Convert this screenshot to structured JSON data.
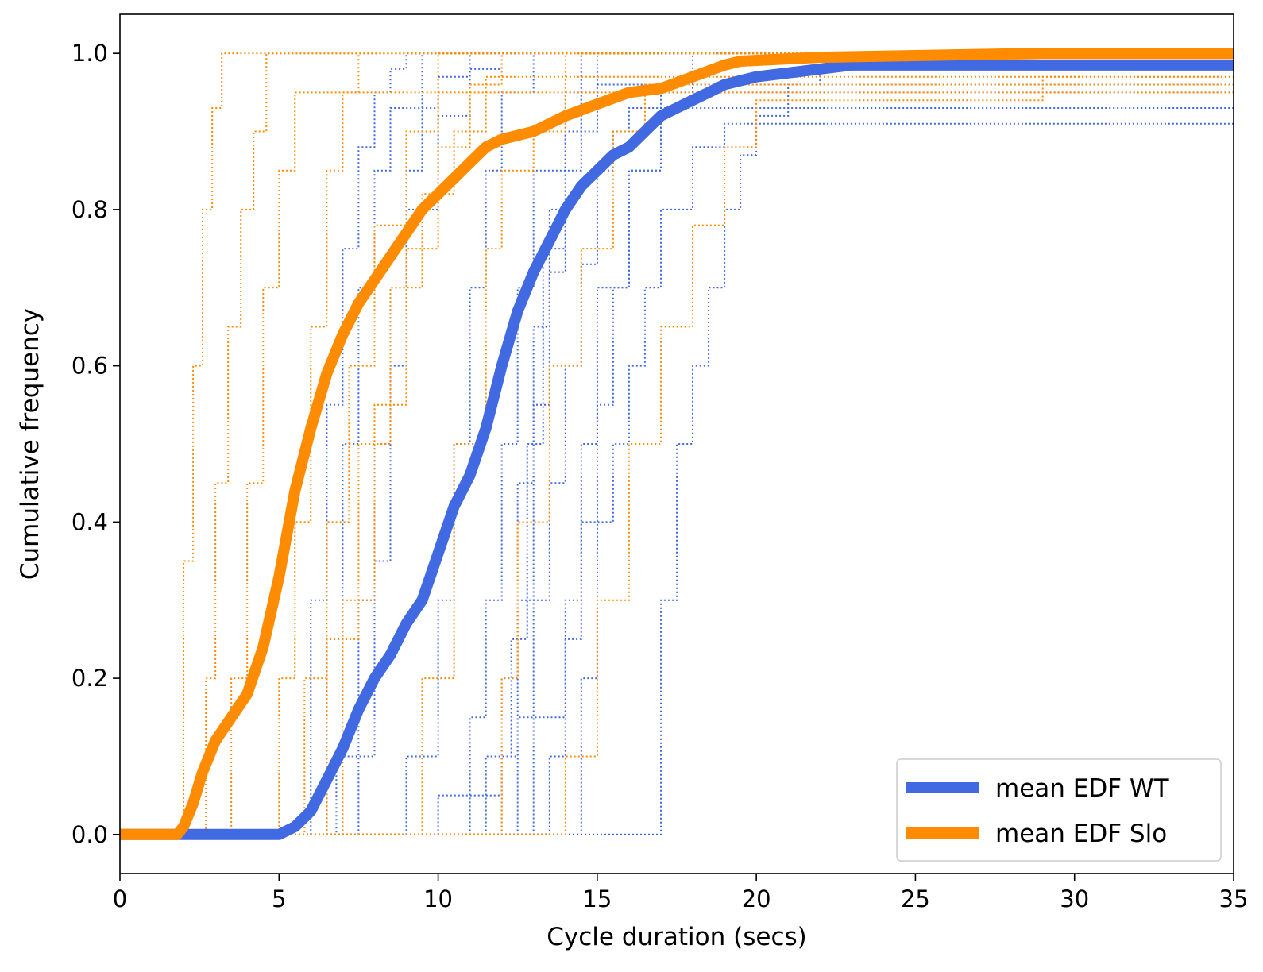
{
  "chart_data": {
    "type": "line",
    "title": "",
    "xlabel": "Cycle duration (secs)",
    "ylabel": "Cumulative frequency",
    "xlim": [
      0,
      35
    ],
    "ylim": [
      -0.05,
      1.05
    ],
    "xticks": [
      0,
      5,
      10,
      15,
      20,
      25,
      30,
      35
    ],
    "xtick_labels": [
      "0",
      "5",
      "10",
      "15",
      "20",
      "25",
      "30",
      "35"
    ],
    "yticks": [
      0.0,
      0.2,
      0.4,
      0.6,
      0.8,
      1.0
    ],
    "ytick_labels": [
      "0.0",
      "0.2",
      "0.4",
      "0.6",
      "0.8",
      "1.0"
    ],
    "grid": false,
    "legend_position": "bottom-right",
    "colors": {
      "wt": "#4169e1",
      "slo": "#ff8c00",
      "axis": "#000000"
    },
    "series": [
      {
        "name": "mean EDF WT",
        "color": "#4169e1",
        "style": "solid-thick",
        "x": [
          0,
          5.0,
          5.5,
          6.0,
          6.5,
          7.0,
          7.5,
          8.0,
          8.5,
          9.0,
          9.5,
          10.0,
          10.5,
          11.0,
          11.5,
          12.0,
          12.5,
          13.0,
          13.5,
          14.0,
          14.5,
          15.0,
          15.5,
          16.0,
          16.5,
          17.0,
          17.5,
          18.0,
          18.5,
          19.0,
          19.5,
          20.0,
          21.0,
          22.0,
          23.0,
          29.0,
          35.0
        ],
        "y": [
          0.0,
          0.0,
          0.01,
          0.03,
          0.07,
          0.11,
          0.16,
          0.2,
          0.23,
          0.27,
          0.3,
          0.36,
          0.42,
          0.46,
          0.52,
          0.6,
          0.67,
          0.72,
          0.76,
          0.8,
          0.83,
          0.85,
          0.87,
          0.88,
          0.9,
          0.92,
          0.93,
          0.94,
          0.95,
          0.96,
          0.965,
          0.97,
          0.975,
          0.98,
          0.985,
          0.985,
          0.985
        ]
      },
      {
        "name": "mean EDF Slo",
        "color": "#ff8c00",
        "style": "solid-thick",
        "x": [
          0,
          1.8,
          2.0,
          2.3,
          2.6,
          3.0,
          3.5,
          4.0,
          4.5,
          5.0,
          5.5,
          6.0,
          6.5,
          7.0,
          7.5,
          8.0,
          8.5,
          9.0,
          9.5,
          10.0,
          10.5,
          11.0,
          11.5,
          12.0,
          13.0,
          14.0,
          15.0,
          16.0,
          17.0,
          18.0,
          19.0,
          19.5,
          22.0,
          29.0,
          35.0
        ],
        "y": [
          0.0,
          0.0,
          0.01,
          0.04,
          0.08,
          0.12,
          0.15,
          0.18,
          0.24,
          0.33,
          0.44,
          0.52,
          0.59,
          0.64,
          0.68,
          0.71,
          0.74,
          0.77,
          0.8,
          0.82,
          0.84,
          0.86,
          0.88,
          0.89,
          0.9,
          0.92,
          0.935,
          0.95,
          0.955,
          0.97,
          0.985,
          0.99,
          0.995,
          1.0,
          1.0
        ]
      }
    ],
    "individual_edfs_wt_shown_unlabeled": [
      {
        "x": [
          0,
          5.3,
          6.0,
          6.5,
          7.0,
          7.5,
          8.0,
          8.5,
          9.0,
          10.0,
          11.0,
          35
        ],
        "y": [
          0,
          0,
          0.3,
          0.55,
          0.75,
          0.88,
          0.95,
          0.98,
          1.0,
          1.0,
          1.0,
          1.0
        ]
      },
      {
        "x": [
          0,
          6.0,
          6.8,
          7.5,
          8.0,
          8.5,
          9.0,
          9.5,
          10.0,
          11.0,
          35
        ],
        "y": [
          0,
          0,
          0.1,
          0.3,
          0.5,
          0.7,
          0.85,
          0.93,
          0.97,
          1.0,
          1.0
        ]
      },
      {
        "x": [
          0,
          7.0,
          7.5,
          8.0,
          8.5,
          9.0,
          10.0,
          11.0,
          12.0,
          35
        ],
        "y": [
          0,
          0,
          0.1,
          0.35,
          0.6,
          0.8,
          0.92,
          0.98,
          1.0,
          1.0
        ]
      },
      {
        "x": [
          0,
          8.0,
          9.0,
          10.0,
          10.5,
          11.0,
          11.5,
          12.0,
          13.0,
          35
        ],
        "y": [
          0,
          0,
          0.1,
          0.3,
          0.5,
          0.7,
          0.85,
          0.95,
          1.0,
          1.0
        ]
      },
      {
        "x": [
          0,
          9.0,
          10.0,
          11.0,
          11.5,
          12.0,
          12.5,
          13.0,
          14.0,
          14.5,
          35
        ],
        "y": [
          0,
          0,
          0.05,
          0.15,
          0.3,
          0.5,
          0.7,
          0.85,
          0.95,
          1.0,
          1.0
        ]
      },
      {
        "x": [
          0,
          10.0,
          11.0,
          12.0,
          12.5,
          13.0,
          13.5,
          14.0,
          15.0,
          35
        ],
        "y": [
          0,
          0,
          0.05,
          0.2,
          0.45,
          0.65,
          0.8,
          0.9,
          0.96,
          0.96
        ]
      },
      {
        "x": [
          0,
          10.5,
          11.5,
          12.3,
          12.8,
          13.3,
          14.0,
          14.5,
          35
        ],
        "y": [
          0,
          0,
          0.1,
          0.25,
          0.5,
          0.75,
          0.9,
          1.0,
          1.0
        ]
      },
      {
        "x": [
          0,
          11.0,
          12.0,
          12.5,
          13.0,
          13.5,
          14.0,
          14.5,
          15.0,
          35
        ],
        "y": [
          0,
          0,
          0.1,
          0.3,
          0.55,
          0.72,
          0.85,
          0.95,
          1.0,
          1.0
        ]
      },
      {
        "x": [
          0,
          12.0,
          12.5,
          13.0,
          13.5,
          14.0,
          14.5,
          15.0,
          15.5,
          16.0,
          35
        ],
        "y": [
          0,
          0,
          0.15,
          0.3,
          0.45,
          0.6,
          0.73,
          0.85,
          0.9,
          0.93,
          0.93
        ]
      },
      {
        "x": [
          0,
          12.5,
          13.0,
          14.0,
          14.5,
          15.0,
          15.5,
          16.0,
          17.0,
          18.0,
          35
        ],
        "y": [
          0,
          0,
          0.15,
          0.25,
          0.4,
          0.55,
          0.7,
          0.85,
          0.93,
          0.95,
          0.95
        ]
      },
      {
        "x": [
          0,
          13.0,
          13.5,
          14.0,
          14.5,
          15.0,
          16.0,
          17.0,
          18.0,
          35
        ],
        "y": [
          0,
          0,
          0.1,
          0.3,
          0.5,
          0.7,
          0.85,
          0.95,
          1.0,
          1.0
        ]
      },
      {
        "x": [
          0,
          14.0,
          14.5,
          15.0,
          15.5,
          16.0,
          16.5,
          17.0,
          18.0,
          19.0,
          35
        ],
        "y": [
          0,
          0,
          0.2,
          0.4,
          0.5,
          0.6,
          0.7,
          0.8,
          0.88,
          0.91,
          0.91
        ]
      },
      {
        "x": [
          0,
          16.3,
          17.0,
          17.5,
          18.0,
          18.5,
          19.0,
          19.5,
          20.0,
          21.0,
          22.0,
          35
        ],
        "y": [
          0,
          0,
          0.3,
          0.5,
          0.6,
          0.7,
          0.8,
          0.87,
          0.92,
          0.96,
          0.98,
          0.98
        ]
      },
      {
        "x": [
          0,
          5.8,
          6.5,
          7.0,
          7.5,
          8.0,
          8.5,
          9.5,
          35
        ],
        "y": [
          0,
          0,
          0.25,
          0.5,
          0.7,
          0.85,
          0.93,
          1.0,
          1.0
        ]
      }
    ],
    "individual_edfs_slo_shown_unlabeled": [
      {
        "x": [
          0,
          1.8,
          2.0,
          2.3,
          2.6,
          2.9,
          3.2,
          35
        ],
        "y": [
          0,
          0,
          0.35,
          0.6,
          0.8,
          0.93,
          1.0,
          1.0
        ]
      },
      {
        "x": [
          0,
          2.3,
          2.7,
          3.0,
          3.4,
          3.8,
          4.2,
          4.6,
          35
        ],
        "y": [
          0,
          0,
          0.2,
          0.45,
          0.65,
          0.8,
          0.9,
          1.0,
          1.0
        ]
      },
      {
        "x": [
          0,
          3.0,
          3.5,
          4.0,
          4.5,
          5.0,
          5.5,
          35
        ],
        "y": [
          0,
          0,
          0.2,
          0.45,
          0.7,
          0.85,
          0.95,
          0.95
        ]
      },
      {
        "x": [
          0,
          4.5,
          5.0,
          5.5,
          6.0,
          6.5,
          7.0,
          7.5,
          35
        ],
        "y": [
          0,
          0,
          0.2,
          0.4,
          0.65,
          0.85,
          0.95,
          1.0,
          1.0
        ]
      },
      {
        "x": [
          0,
          5.0,
          5.8,
          6.5,
          7.2,
          8.0,
          9.0,
          10.0,
          35
        ],
        "y": [
          0,
          0,
          0.2,
          0.4,
          0.6,
          0.78,
          0.9,
          1.0,
          1.0
        ]
      },
      {
        "x": [
          0,
          5.5,
          6.5,
          7.5,
          8.5,
          9.5,
          10.5,
          11.5,
          35
        ],
        "y": [
          0,
          0,
          0.25,
          0.5,
          0.7,
          0.82,
          0.9,
          0.97,
          0.97
        ]
      },
      {
        "x": [
          0,
          8.5,
          9.5,
          10.5,
          11.5,
          12.0,
          13.0,
          14.0,
          35
        ],
        "y": [
          0,
          0,
          0.2,
          0.5,
          0.75,
          0.85,
          0.9,
          1.0,
          1.0
        ]
      },
      {
        "x": [
          0,
          11.0,
          12.0,
          12.5,
          13.5,
          14.5,
          15.5,
          16.5,
          35
        ],
        "y": [
          0,
          0,
          0.2,
          0.4,
          0.6,
          0.75,
          0.9,
          0.96,
          0.96
        ]
      },
      {
        "x": [
          0,
          13.0,
          14.0,
          15.0,
          16.0,
          17.0,
          18.0,
          19.0,
          20.0,
          29.0,
          35
        ],
        "y": [
          0,
          0,
          0.1,
          0.3,
          0.5,
          0.65,
          0.78,
          0.88,
          0.94,
          0.97,
          0.97
        ]
      },
      {
        "x": [
          0,
          6.0,
          7.0,
          8.0,
          9.0,
          10.0,
          11.0,
          12.0,
          35
        ],
        "y": [
          0,
          0,
          0.3,
          0.55,
          0.75,
          0.88,
          0.96,
          1.0,
          1.0
        ]
      }
    ]
  }
}
